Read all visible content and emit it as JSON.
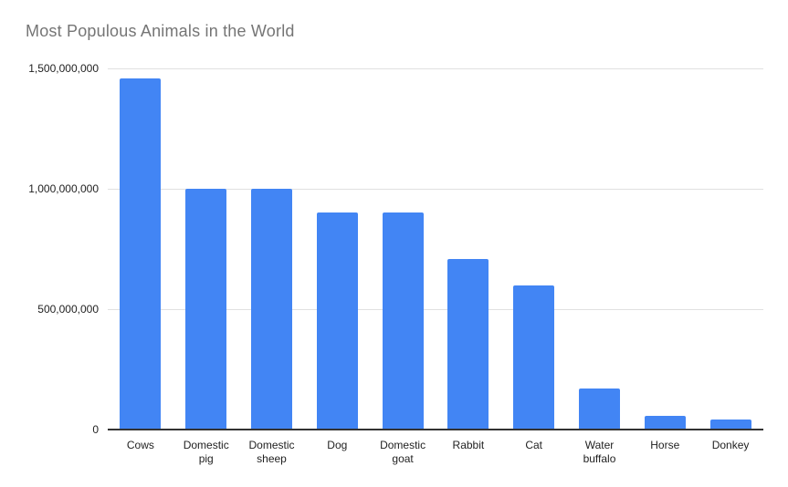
{
  "chart_data": {
    "type": "bar",
    "title": "Most Populous Animals in the World",
    "xlabel": "",
    "ylabel": "",
    "categories": [
      "Cows",
      "Domestic pig",
      "Domestic sheep",
      "Dog",
      "Domestic goat",
      "Rabbit",
      "Cat",
      "Water buffalo",
      "Horse",
      "Donkey"
    ],
    "values": [
      1460000000,
      1000000000,
      1000000000,
      900000000,
      900000000,
      710000000,
      600000000,
      170000000,
      55000000,
      40000000
    ],
    "ylim": [
      0,
      1500000000
    ],
    "y_ticks": [
      {
        "value": 1500000000,
        "label": "1,500,000,000"
      },
      {
        "value": 1000000000,
        "label": "1,000,000,000"
      },
      {
        "value": 500000000,
        "label": "500,000,000"
      },
      {
        "value": 0,
        "label": "0"
      }
    ],
    "grid": "horizontal",
    "legend": "none",
    "colors": {
      "bar": "#4285f4",
      "title_text": "#757575",
      "axis_text": "#1f1f1f",
      "gridline": "#e0e0e0",
      "baseline": "#333333",
      "background": "#ffffff"
    }
  }
}
